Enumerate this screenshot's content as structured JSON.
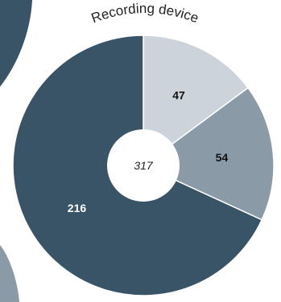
{
  "chart_data": {
    "type": "pie",
    "title": "Recording device",
    "total_label": "317",
    "slices": [
      {
        "label": "47",
        "value": 47,
        "color": "#cdd3da",
        "label_color": "#111111"
      },
      {
        "label": "54",
        "value": 54,
        "color": "#8b9aa7",
        "label_color": "#111111"
      },
      {
        "label": "216",
        "value": 216,
        "color": "#3a5467",
        "label_color": "#ffffff"
      }
    ],
    "neighbor_color": "#3a5467",
    "neighbor_bottom_color": "#8b9aa7"
  }
}
